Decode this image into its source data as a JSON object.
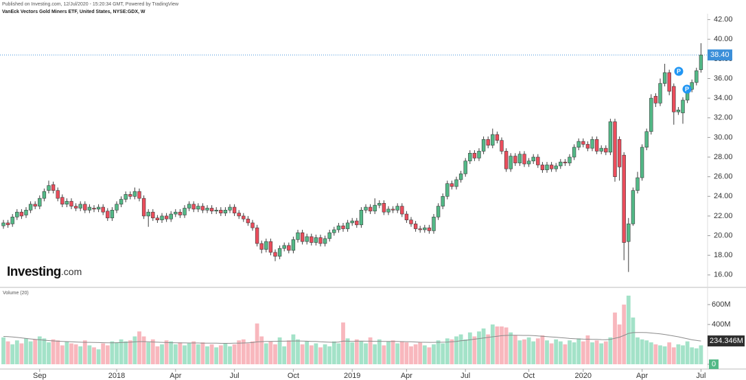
{
  "chart_data": {
    "type": "candlestick",
    "subtitle": "Published on Investing.com, 12/Jul/2020 - 15:20:34 GMT, Powered by TradingView",
    "title": "VanEck Vectors Gold Miners ETF, United States, NYSE:GDX, W",
    "logo": {
      "bold": "Investing",
      "suffix": ".com"
    },
    "event_markers": [
      "P",
      "P"
    ],
    "categories": [
      null,
      null,
      null,
      null,
      null,
      null,
      null,
      null,
      "Sep",
      null,
      null,
      null,
      null,
      null,
      null,
      null,
      null,
      null,
      null,
      null,
      null,
      null,
      null,
      null,
      null,
      "2018",
      null,
      null,
      null,
      null,
      null,
      null,
      null,
      null,
      null,
      null,
      null,
      null,
      "Apr",
      null,
      null,
      null,
      null,
      null,
      null,
      null,
      null,
      null,
      null,
      null,
      null,
      "Jul",
      null,
      null,
      null,
      null,
      null,
      null,
      null,
      null,
      null,
      null,
      null,
      null,
      "Oct",
      null,
      null,
      null,
      null,
      null,
      null,
      null,
      null,
      null,
      null,
      null,
      null,
      "2019",
      null,
      null,
      null,
      null,
      null,
      null,
      null,
      null,
      null,
      null,
      null,
      "Apr",
      null,
      null,
      null,
      null,
      null,
      null,
      null,
      null,
      null,
      null,
      null,
      null,
      "Jul",
      null,
      null,
      null,
      null,
      null,
      null,
      null,
      null,
      null,
      null,
      null,
      null,
      null,
      "Oct",
      null,
      null,
      null,
      null,
      null,
      null,
      null,
      null,
      null,
      null,
      null,
      "2020",
      null,
      null,
      null,
      null,
      null,
      null,
      null,
      null,
      null,
      null,
      null,
      null,
      "Apr",
      null,
      null,
      null,
      null,
      null,
      null,
      null,
      null,
      null,
      null,
      null,
      null,
      "Jul"
    ],
    "open": [
      21.0,
      21.3,
      21.2,
      21.9,
      22.4,
      22.1,
      22.6,
      23.2,
      23.0,
      23.8,
      24.6,
      25.2,
      24.6,
      23.9,
      23.2,
      23.5,
      23.0,
      22.8,
      23.2,
      22.6,
      22.8,
      22.7,
      22.9,
      22.5,
      21.8,
      22.6,
      23.2,
      23.7,
      24.2,
      24.0,
      24.5,
      23.8,
      22.0,
      22.4,
      21.8,
      21.6,
      22.0,
      21.7,
      22.2,
      22.4,
      22.1,
      22.8,
      23.2,
      22.7,
      23.0,
      22.6,
      22.8,
      22.5,
      22.6,
      22.3,
      22.6,
      22.9,
      22.3,
      22.0,
      21.7,
      21.3,
      20.8,
      19.2,
      18.6,
      19.4,
      18.3,
      17.9,
      18.7,
      19.0,
      18.5,
      19.6,
      20.3,
      19.4,
      19.9,
      19.3,
      19.8,
      19.2,
      19.7,
      20.3,
      20.6,
      21.0,
      20.7,
      21.3,
      21.5,
      21.1,
      22.6,
      22.9,
      22.5,
      23.1,
      23.3,
      22.4,
      22.7,
      22.6,
      23.0,
      22.2,
      21.6,
      21.2,
      20.7,
      20.6,
      20.8,
      20.5,
      21.9,
      23.0,
      24.0,
      25.3,
      25.0,
      25.7,
      26.3,
      27.6,
      28.4,
      27.9,
      28.6,
      29.8,
      29.2,
      30.3,
      29.7,
      28.6,
      26.8,
      28.1,
      27.4,
      28.3,
      27.3,
      27.6,
      28.0,
      27.2,
      26.7,
      27.2,
      26.8,
      27.1,
      27.5,
      27.4,
      28.0,
      29.0,
      29.6,
      29.3,
      28.9,
      29.8,
      28.6,
      28.9,
      28.5,
      31.6,
      29.8,
      28.2,
      19.4,
      21.2,
      24.6,
      25.9,
      29.0,
      30.6,
      34.2,
      33.5,
      35.5,
      36.6,
      35.2,
      32.6,
      32.5,
      33.8,
      34.9,
      35.6,
      36.9
    ],
    "high": [
      21.6,
      21.6,
      22.2,
      22.7,
      22.7,
      22.9,
      23.5,
      23.5,
      24.1,
      24.8,
      25.6,
      25.5,
      24.9,
      24.2,
      23.8,
      23.8,
      23.3,
      23.5,
      23.5,
      23.2,
      23.1,
      23.2,
      23.2,
      22.8,
      22.9,
      23.5,
      24.0,
      24.5,
      24.5,
      24.9,
      24.8,
      24.1,
      22.7,
      22.7,
      22.1,
      22.3,
      22.3,
      22.5,
      22.7,
      22.7,
      23.1,
      23.5,
      23.5,
      23.3,
      23.3,
      23.1,
      23.1,
      22.9,
      22.9,
      22.9,
      23.2,
      23.2,
      22.6,
      22.3,
      22.0,
      21.6,
      21.1,
      19.5,
      19.7,
      19.7,
      18.6,
      19.0,
      19.3,
      19.3,
      19.9,
      20.6,
      20.6,
      20.2,
      20.2,
      20.1,
      20.1,
      20.0,
      20.6,
      20.9,
      21.3,
      21.3,
      21.6,
      21.8,
      21.8,
      22.9,
      23.2,
      23.2,
      23.8,
      23.6,
      23.6,
      23.0,
      23.0,
      23.3,
      23.3,
      22.5,
      21.9,
      21.5,
      21.0,
      21.1,
      21.1,
      22.2,
      23.3,
      24.3,
      25.6,
      25.6,
      26.0,
      26.6,
      27.9,
      28.7,
      28.7,
      28.9,
      30.1,
      30.1,
      30.9,
      30.6,
      30.0,
      28.9,
      28.4,
      28.4,
      28.6,
      28.6,
      27.9,
      28.3,
      28.3,
      27.5,
      27.5,
      27.5,
      27.4,
      27.8,
      27.8,
      28.3,
      29.3,
      29.9,
      29.9,
      29.6,
      30.1,
      30.1,
      29.2,
      29.2,
      31.9,
      31.9,
      30.1,
      28.5,
      21.8,
      24.9,
      26.5,
      29.3,
      30.9,
      34.4,
      34.5,
      36.0,
      37.5,
      36.9,
      35.5,
      33.1,
      34.1,
      35.2,
      35.9,
      37.1,
      39.6
    ],
    "low": [
      20.7,
      20.8,
      20.9,
      21.6,
      21.7,
      21.8,
      22.3,
      22.7,
      22.7,
      23.5,
      24.3,
      24.3,
      23.5,
      22.9,
      22.9,
      22.7,
      22.5,
      22.5,
      22.3,
      22.3,
      22.4,
      22.4,
      22.1,
      21.5,
      21.5,
      22.3,
      22.9,
      23.4,
      23.7,
      23.7,
      23.5,
      21.7,
      20.9,
      21.5,
      21.3,
      21.3,
      21.4,
      21.4,
      21.9,
      21.8,
      21.8,
      22.5,
      22.4,
      22.4,
      22.3,
      22.3,
      22.2,
      22.2,
      22.0,
      22.0,
      22.3,
      22.0,
      21.7,
      21.4,
      21.0,
      20.5,
      18.9,
      18.2,
      18.3,
      18.0,
      17.4,
      17.6,
      18.4,
      18.2,
      18.2,
      19.3,
      19.1,
      19.1,
      19.0,
      19.0,
      18.9,
      18.9,
      19.4,
      20.0,
      20.3,
      20.4,
      20.4,
      21.0,
      20.8,
      20.8,
      22.3,
      22.2,
      22.2,
      22.8,
      22.1,
      22.1,
      22.3,
      22.3,
      21.9,
      21.3,
      20.9,
      20.4,
      20.3,
      20.3,
      20.2,
      20.2,
      21.6,
      22.7,
      23.7,
      24.7,
      24.7,
      25.4,
      26.0,
      27.3,
      27.6,
      27.6,
      28.3,
      28.9,
      28.9,
      29.4,
      28.3,
      26.5,
      26.5,
      27.1,
      27.1,
      27.0,
      27.0,
      27.3,
      26.9,
      26.4,
      26.4,
      26.5,
      26.5,
      26.8,
      27.1,
      27.1,
      27.7,
      28.7,
      29.0,
      28.6,
      28.6,
      28.3,
      28.3,
      28.2,
      28.2,
      25.5,
      25.6,
      17.5,
      16.3,
      21.0,
      24.3,
      25.6,
      28.7,
      30.3,
      33.1,
      33.2,
      35.2,
      34.3,
      31.3,
      32.3,
      31.4,
      33.5,
      34.6,
      35.3,
      36.6
    ],
    "close": [
      21.3,
      21.1,
      21.9,
      22.4,
      22.0,
      22.6,
      23.2,
      23.0,
      23.8,
      24.5,
      25.1,
      24.6,
      23.8,
      23.2,
      23.5,
      23.0,
      22.8,
      23.2,
      22.6,
      22.9,
      22.7,
      22.9,
      22.4,
      21.8,
      22.6,
      23.2,
      23.7,
      24.2,
      24.0,
      24.5,
      23.8,
      22.0,
      22.4,
      21.8,
      21.6,
      22.0,
      21.7,
      22.2,
      22.4,
      22.1,
      22.8,
      23.2,
      22.7,
      23.0,
      22.6,
      22.8,
      22.5,
      22.6,
      22.3,
      22.6,
      22.9,
      22.3,
      22.0,
      21.7,
      21.3,
      20.8,
      19.2,
      18.6,
      19.4,
      18.3,
      17.9,
      18.7,
      19.0,
      18.5,
      19.6,
      20.3,
      19.4,
      19.9,
      19.3,
      19.8,
      19.2,
      19.7,
      20.3,
      20.6,
      21.0,
      20.7,
      21.3,
      21.5,
      21.1,
      22.6,
      22.9,
      22.5,
      23.1,
      23.3,
      22.4,
      22.7,
      22.6,
      23.0,
      22.2,
      21.6,
      21.2,
      20.7,
      20.6,
      20.8,
      20.5,
      21.9,
      23.0,
      24.0,
      25.3,
      25.0,
      25.7,
      26.3,
      27.6,
      28.4,
      27.9,
      28.6,
      29.8,
      29.2,
      30.3,
      29.7,
      28.6,
      26.8,
      28.1,
      27.4,
      28.3,
      27.3,
      27.6,
      28.0,
      27.2,
      26.7,
      27.2,
      26.8,
      27.1,
      27.5,
      27.4,
      28.0,
      29.0,
      29.6,
      29.3,
      28.9,
      29.8,
      28.6,
      28.9,
      28.5,
      31.6,
      26.0,
      27.0,
      19.3,
      21.2,
      24.6,
      25.9,
      29.0,
      30.6,
      34.0,
      33.5,
      35.5,
      36.6,
      34.7,
      32.6,
      32.8,
      33.8,
      34.9,
      35.6,
      36.8,
      38.4
    ],
    "up_color": "#53b987",
    "down_color": "#eb4d5c",
    "wick_color": "#3a3a3a",
    "ylim": [
      14.8,
      42.6
    ],
    "yticks": [
      {
        "value": 16,
        "label": "16.00"
      },
      {
        "value": 18,
        "label": "18.00"
      },
      {
        "value": 20,
        "label": "20.00"
      },
      {
        "value": 22,
        "label": "22.00"
      },
      {
        "value": 24,
        "label": "24.00"
      },
      {
        "value": 26,
        "label": "26.00"
      },
      {
        "value": 28,
        "label": "28.00"
      },
      {
        "value": 30,
        "label": "30.00"
      },
      {
        "value": 32,
        "label": "32.00"
      },
      {
        "value": 34,
        "label": "34.00"
      },
      {
        "value": 36,
        "label": "36.00"
      },
      {
        "value": 38,
        "label": "38.00"
      },
      {
        "value": 40,
        "label": "40.00"
      },
      {
        "value": 42,
        "label": "42.00"
      }
    ],
    "last_price_label": "38.40",
    "last_price_color": "#3b8fd9",
    "grid": false,
    "volume": {
      "title": "Volume (20)",
      "up_color": "#a3e2c8",
      "down_color": "#f8b7bd",
      "ylim": [
        -48,
        766
      ],
      "yticks": [
        0,
        {
          "value": 400,
          "label": "400M"
        },
        {
          "value": 600,
          "label": "600M"
        }
      ],
      "values": [
        270,
        230,
        200,
        240,
        210,
        260,
        230,
        250,
        280,
        260,
        220,
        250,
        240,
        190,
        230,
        210,
        200,
        180,
        240,
        190,
        170,
        150,
        210,
        190,
        230,
        220,
        250,
        230,
        240,
        280,
        330,
        280,
        220,
        250,
        180,
        200,
        240,
        230,
        200,
        220,
        190,
        210,
        230,
        200,
        220,
        180,
        200,
        170,
        190,
        210,
        180,
        200,
        240,
        250,
        210,
        230,
        410,
        280,
        210,
        230,
        200,
        270,
        180,
        240,
        300,
        250,
        200,
        230,
        190,
        210,
        170,
        200,
        180,
        230,
        210,
        420,
        260,
        220,
        250,
        230,
        210,
        270,
        200,
        250,
        190,
        230,
        240,
        210,
        230,
        220,
        180,
        200,
        220,
        190,
        170,
        200,
        240,
        210,
        260,
        250,
        280,
        300,
        250,
        320,
        280,
        330,
        360,
        300,
        400,
        380,
        380,
        370,
        320,
        290,
        240,
        250,
        270,
        230,
        260,
        290,
        240,
        210,
        250,
        230,
        200,
        240,
        220,
        260,
        230,
        290,
        220,
        240,
        210,
        230,
        270,
        520,
        400,
        600,
        690,
        470,
        270,
        250,
        240,
        220,
        200,
        190,
        180,
        220,
        170,
        200,
        190,
        230,
        170,
        160,
        190
      ],
      "ma": {
        "color": "#8a8a8a",
        "last_label": "234.346M",
        "values": [
          280,
          278,
          274,
          270,
          265,
          260,
          255,
          250,
          246,
          242,
          238,
          235,
          232,
          230,
          228,
          226,
          224,
          222,
          220,
          220,
          219,
          218,
          217,
          216,
          216,
          217,
          218,
          220,
          222,
          225,
          228,
          228,
          226,
          224,
          222,
          220,
          218,
          217,
          216,
          215,
          215,
          214,
          214,
          214,
          213,
          213,
          212,
          212,
          211,
          211,
          211,
          212,
          213,
          214,
          216,
          218,
          225,
          228,
          230,
          230,
          231,
          232,
          232,
          233,
          234,
          234,
          233,
          232,
          230,
          229,
          226,
          224,
          222,
          220,
          224,
          233,
          232,
          231,
          232,
          233,
          232,
          232,
          231,
          231,
          230,
          230,
          229,
          229,
          228,
          227,
          226,
          224,
          222,
          221,
          220,
          220,
          221,
          222,
          223,
          226,
          230,
          236,
          240,
          246,
          252,
          258,
          264,
          270,
          276,
          282,
          287,
          290,
          292,
          292,
          291,
          290,
          290,
          288,
          285,
          282,
          278,
          275,
          272,
          268,
          264,
          260,
          257,
          255,
          253,
          252,
          251,
          250,
          248,
          247,
          250,
          262,
          272,
          290,
          310,
          318,
          320,
          320,
          318,
          314,
          310,
          306,
          300,
          292,
          284,
          276,
          266,
          256,
          246,
          240,
          234.346
        ]
      }
    }
  }
}
